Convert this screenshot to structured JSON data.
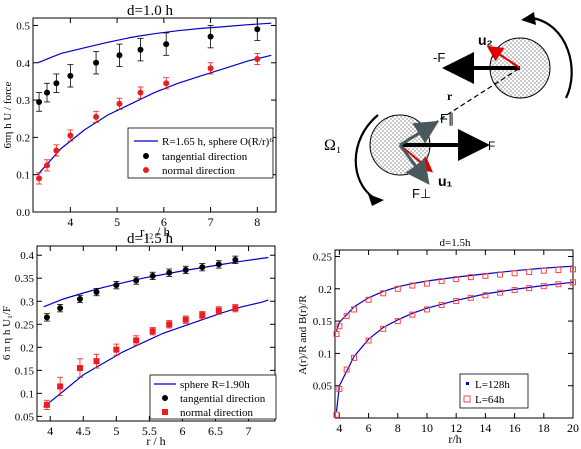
{
  "colors": {
    "model": "#0000cc",
    "normal": "#ee1c1c",
    "tangential": "#000000",
    "L64": "#ff4444"
  },
  "chart_data": [
    {
      "type": "scatter",
      "panel": "top-left",
      "title": "d=1.0 h",
      "xlabel": "r₁₂ / h",
      "ylabel": "6πη  h U / force",
      "xlim": [
        3.2,
        8.4
      ],
      "ylim": [
        0,
        0.52
      ],
      "xticks": [
        4,
        5,
        6,
        7,
        8
      ],
      "yticks": [
        0,
        0.1,
        0.2,
        0.3,
        0.4,
        0.5
      ],
      "legend_position": "lower-right",
      "series": [
        {
          "name": "R=1.65 h, sphere O(R/r)⁶",
          "kind": "curves",
          "color": "#0000cc",
          "curves": [
            {
              "x": [
                3.3,
                3.8,
                4.3,
                4.8,
                5.3,
                5.8,
                6.3,
                6.8,
                7.3,
                7.8,
                8.3
              ],
              "y": [
                0.4,
                0.425,
                0.44,
                0.455,
                0.468,
                0.478,
                0.486,
                0.492,
                0.497,
                0.502,
                0.506
              ]
            },
            {
              "x": [
                3.3,
                3.8,
                4.3,
                4.8,
                5.3,
                5.8,
                6.3,
                6.8,
                7.3,
                7.8,
                8.3
              ],
              "y": [
                0.1,
                0.17,
                0.22,
                0.26,
                0.29,
                0.32,
                0.345,
                0.365,
                0.385,
                0.405,
                0.42
              ]
            }
          ]
        },
        {
          "name": "tangential direction",
          "kind": "points",
          "marker": "circle",
          "color": "#000000",
          "x": [
            3.33,
            3.5,
            3.7,
            4.0,
            4.55,
            5.05,
            5.5,
            6.05,
            7.0,
            8.0
          ],
          "y": [
            0.295,
            0.32,
            0.345,
            0.365,
            0.4,
            0.42,
            0.435,
            0.45,
            0.47,
            0.49
          ],
          "err": [
            0.025,
            0.025,
            0.025,
            0.03,
            0.03,
            0.03,
            0.03,
            0.03,
            0.03,
            0.03
          ]
        },
        {
          "name": "normal direction",
          "kind": "points",
          "marker": "circle",
          "color": "#ee1c1c",
          "x": [
            3.33,
            3.5,
            3.7,
            4.0,
            4.55,
            5.05,
            5.5,
            6.05,
            7.0,
            8.0
          ],
          "y": [
            0.09,
            0.125,
            0.165,
            0.205,
            0.255,
            0.29,
            0.32,
            0.345,
            0.385,
            0.41
          ],
          "err": [
            0.015,
            0.015,
            0.015,
            0.015,
            0.015,
            0.015,
            0.015,
            0.015,
            0.015,
            0.015
          ]
        }
      ]
    },
    {
      "type": "scatter",
      "panel": "bottom-left",
      "title": "d=1.5 h",
      "xlabel": "r / h",
      "ylabel": "6 π η h U₁/F",
      "xlim": [
        3.8,
        7.4
      ],
      "ylim": [
        0.04,
        0.42
      ],
      "xticks": [
        4,
        4.5,
        5,
        5.5,
        6,
        6.5,
        7
      ],
      "yticks": [
        0.05,
        0.1,
        0.15,
        0.2,
        0.25,
        0.3,
        0.35,
        0.4
      ],
      "legend_position": "lower-right",
      "series": [
        {
          "name": "sphere R=1.90h",
          "kind": "curves",
          "color": "#0000cc",
          "curves": [
            {
              "x": [
                3.9,
                4.2,
                4.5,
                4.8,
                5.1,
                5.4,
                5.7,
                6.0,
                6.3,
                6.6,
                6.9,
                7.2,
                7.3
              ],
              "y": [
                0.288,
                0.305,
                0.318,
                0.33,
                0.34,
                0.35,
                0.358,
                0.366,
                0.373,
                0.38,
                0.387,
                0.393,
                0.395
              ]
            },
            {
              "x": [
                3.9,
                4.2,
                4.5,
                4.8,
                5.1,
                5.4,
                5.7,
                6.0,
                6.3,
                6.6,
                6.9,
                7.2,
                7.3
              ],
              "y": [
                0.07,
                0.105,
                0.14,
                0.165,
                0.19,
                0.21,
                0.23,
                0.245,
                0.26,
                0.275,
                0.288,
                0.298,
                0.303
              ]
            }
          ]
        },
        {
          "name": "tangential direction",
          "kind": "points",
          "marker": "circle",
          "color": "#000000",
          "x": [
            3.95,
            4.15,
            4.45,
            4.7,
            5.0,
            5.3,
            5.55,
            5.8,
            6.05,
            6.3,
            6.55,
            6.8
          ],
          "y": [
            0.265,
            0.285,
            0.305,
            0.32,
            0.335,
            0.345,
            0.355,
            0.362,
            0.368,
            0.374,
            0.38,
            0.39
          ],
          "err": [
            0.008,
            0.008,
            0.008,
            0.008,
            0.008,
            0.008,
            0.008,
            0.008,
            0.008,
            0.008,
            0.008,
            0.008
          ]
        },
        {
          "name": "normal direction",
          "kind": "points",
          "marker": "square",
          "color": "#ee1c1c",
          "x": [
            3.95,
            4.15,
            4.45,
            4.7,
            5.0,
            5.3,
            5.55,
            5.8,
            6.05,
            6.3,
            6.55,
            6.8
          ],
          "y": [
            0.075,
            0.115,
            0.155,
            0.17,
            0.195,
            0.215,
            0.235,
            0.25,
            0.26,
            0.27,
            0.28,
            0.285
          ],
          "err": [
            0.01,
            0.02,
            0.02,
            0.015,
            0.012,
            0.01,
            0.008,
            0.008,
            0.008,
            0.008,
            0.008,
            0.008
          ]
        }
      ]
    },
    {
      "type": "line",
      "panel": "bottom-right",
      "title": "d=1.5h",
      "xlabel": "r/h",
      "ylabel": "A(r)/R and  B(r)/R",
      "xlim": [
        3.7,
        20
      ],
      "ylim": [
        0,
        0.26
      ],
      "xticks": [
        4,
        6,
        8,
        10,
        12,
        14,
        16,
        18,
        20
      ],
      "yticks": [
        0.05,
        0.1,
        0.15,
        0.2,
        0.25
      ],
      "legend_position": "lower-right",
      "series": [
        {
          "name": "L=128h",
          "kind": "curves",
          "color": "#0000cc",
          "curves": [
            {
              "x": [
                3.8,
                4,
                5,
                6,
                7,
                8,
                9,
                10,
                12,
                14,
                16,
                18,
                20
              ],
              "y": [
                0.135,
                0.148,
                0.172,
                0.186,
                0.196,
                0.203,
                0.208,
                0.212,
                0.218,
                0.223,
                0.228,
                0.232,
                0.235
              ]
            },
            {
              "x": [
                3.8,
                4,
                5,
                6,
                7,
                8,
                9,
                10,
                12,
                14,
                16,
                18,
                20
              ],
              "y": [
                0.01,
                0.05,
                0.095,
                0.122,
                0.14,
                0.152,
                0.162,
                0.17,
                0.182,
                0.192,
                0.199,
                0.205,
                0.21
              ]
            }
          ]
        },
        {
          "name": "L=64h",
          "kind": "points",
          "marker": "square-open",
          "color": "#ff4444",
          "curves": [
            {
              "x": [
                3.8,
                4,
                4.5,
                5,
                6,
                7,
                8,
                9,
                10,
                11,
                12,
                13,
                14,
                15,
                16,
                17,
                18,
                19,
                20
              ],
              "y": [
                0.13,
                0.142,
                0.158,
                0.168,
                0.183,
                0.193,
                0.2,
                0.205,
                0.208,
                0.212,
                0.215,
                0.218,
                0.22,
                0.222,
                0.224,
                0.226,
                0.228,
                0.229,
                0.23
              ]
            },
            {
              "x": [
                3.8,
                4,
                4.5,
                5,
                6,
                7,
                8,
                9,
                10,
                11,
                12,
                13,
                14,
                15,
                16,
                17,
                18,
                19,
                20
              ],
              "y": [
                0.005,
                0.045,
                0.075,
                0.093,
                0.12,
                0.138,
                0.15,
                0.16,
                0.168,
                0.175,
                0.181,
                0.186,
                0.19,
                0.194,
                0.198,
                0.201,
                0.204,
                0.207,
                0.21
              ]
            }
          ]
        }
      ]
    }
  ],
  "diagram": {
    "labels": {
      "u2": "u₂",
      "minus_f": "-F",
      "r": "r",
      "f_par": "F∥",
      "omega": "Ω₁",
      "f": "F",
      "u1": "u₁",
      "f_perp": "F⊥"
    }
  }
}
